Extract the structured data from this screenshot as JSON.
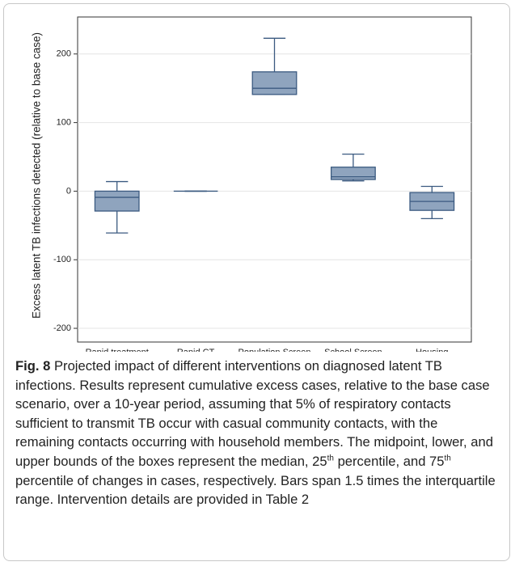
{
  "chart_data": {
    "type": "box",
    "y_label": "Excess latent TB infections detected (relative to base case)",
    "categories": [
      "Rapid treatment",
      "Rapid CT",
      "Population Screen",
      "School Screen",
      "Housing"
    ],
    "boxes": [
      {
        "whisker_low": -61,
        "q1": -29,
        "median": -9,
        "q3": 0,
        "whisker_high": 14
      },
      {
        "whisker_low": 0,
        "q1": 0,
        "median": 0,
        "q3": 0,
        "whisker_high": 0
      },
      {
        "whisker_low": 141,
        "q1": 141,
        "median": 150,
        "q3": 174,
        "whisker_high": 223
      },
      {
        "whisker_low": 15,
        "q1": 17,
        "median": 21,
        "q3": 35,
        "whisker_high": 54
      },
      {
        "whisker_low": -40,
        "q1": -28,
        "median": -15,
        "q3": -2,
        "whisker_high": 7
      }
    ],
    "color": "#8fa4be",
    "edge_color": "#3b5a80",
    "ylim": [
      -220,
      254
    ],
    "yticks": [
      -200,
      -100,
      0,
      100,
      200
    ]
  },
  "caption": {
    "label": "Fig. 8",
    "text": [
      "Projected impact of different interventions on diagnosed latent TB infections. Results represent cumulative excess cases, relative to the base case scenario, over a 10-year period, assuming that 5% of respiratory contacts sufficient to transmit TB occur with casual community contacts, with the remaining contacts occurring with household members. The midpoint, lower, and upper bounds of the boxes represent the median, 25",
      "th",
      " percentile, and 75",
      "th",
      " percentile of changes in cases, respectively. Bars span 1.5 times the interquartile range. Intervention details are provided in Table 2"
    ]
  }
}
